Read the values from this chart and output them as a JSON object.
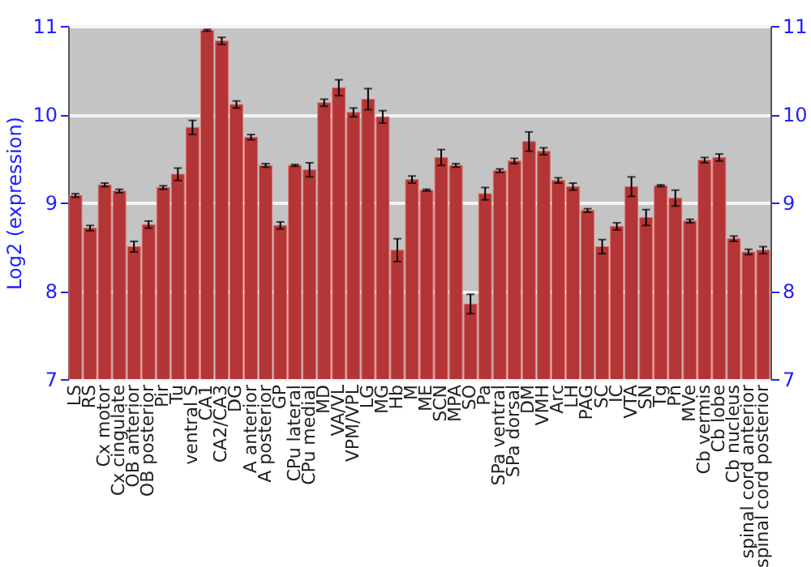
{
  "chart_data": {
    "type": "bar",
    "ylabel": "Log2 (expression)",
    "categories": [
      "LS",
      "RS",
      "Cx motor",
      "Cx cingulate",
      "OB anterior",
      "OB posterior",
      "Pir",
      "Tu",
      "ventral S",
      "CA1",
      "CA2/CA3",
      "DG",
      "A anterior",
      "A posterior",
      "GP",
      "CPu lateral",
      "CPu medial",
      "MD",
      "VA/VL",
      "VPM/VPL",
      "LG",
      "MG",
      "Hb",
      "M",
      "ME",
      "SCN",
      "MPA",
      "SO",
      "Pa",
      "SPa ventral",
      "SPa dorsal",
      "DM",
      "VMH",
      "Arc",
      "LH",
      "PAG",
      "SC",
      "IC",
      "VTA",
      "SN",
      "Tg",
      "Pn",
      "MVe",
      "Cb vermis",
      "Cb lobe",
      "Cb nucleus",
      "spinal cord anterior",
      "spinal cord posterior"
    ],
    "values": [
      9.08,
      8.71,
      9.2,
      9.13,
      8.5,
      8.75,
      9.17,
      9.32,
      9.85,
      10.95,
      10.83,
      10.11,
      9.74,
      9.42,
      8.74,
      9.42,
      9.37,
      10.13,
      10.3,
      10.02,
      10.17,
      9.97,
      8.46,
      9.26,
      9.14,
      9.51,
      9.42,
      7.85,
      9.1,
      9.36,
      9.47,
      9.69,
      9.58,
      9.25,
      9.18,
      8.91,
      8.5,
      8.73,
      9.18,
      8.83,
      9.19,
      9.05,
      8.79,
      9.48,
      9.51,
      8.59,
      8.44,
      8.46
    ],
    "errors": [
      0.02,
      0.03,
      0.02,
      0.02,
      0.06,
      0.04,
      0.02,
      0.07,
      0.08,
      0.01,
      0.04,
      0.04,
      0.03,
      0.02,
      0.04,
      0.01,
      0.08,
      0.04,
      0.09,
      0.05,
      0.12,
      0.07,
      0.13,
      0.04,
      0.01,
      0.09,
      0.02,
      0.11,
      0.07,
      0.02,
      0.03,
      0.11,
      0.04,
      0.03,
      0.04,
      0.02,
      0.08,
      0.04,
      0.11,
      0.09,
      0.01,
      0.09,
      0.02,
      0.03,
      0.04,
      0.03,
      0.03,
      0.04
    ],
    "color": "#b33535",
    "ylim": [
      7,
      11
    ],
    "yticks": [
      7,
      8,
      9,
      10,
      11
    ],
    "y2lim": [
      7,
      11
    ],
    "y2ticks": [
      7,
      8,
      9,
      10,
      11
    ],
    "grid": "y"
  }
}
